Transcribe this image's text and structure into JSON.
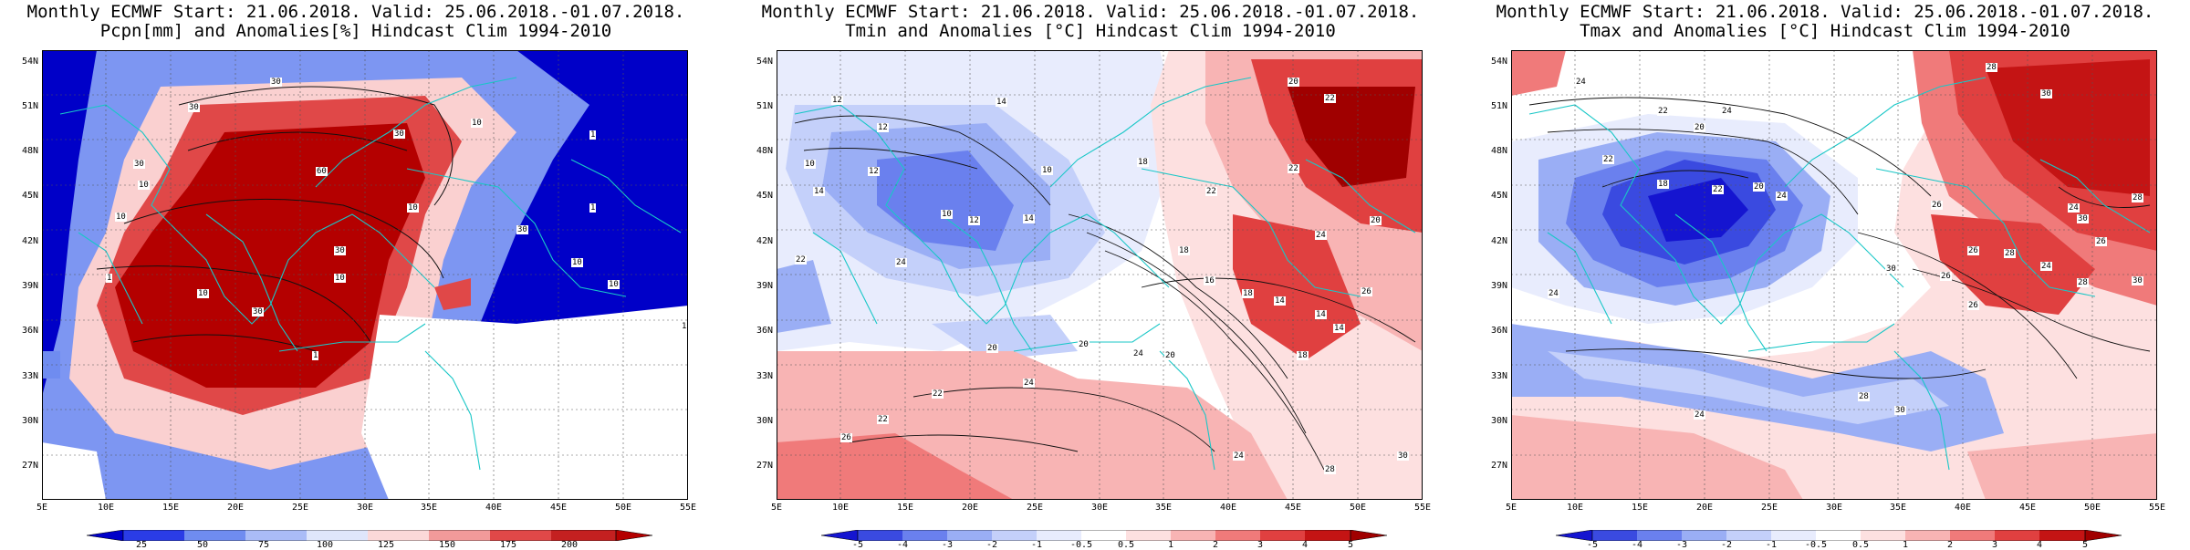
{
  "panels": [
    {
      "id": "precip",
      "title1": "Monthly ECMWF Start: 21.06.2018. Valid: 25.06.2018.-01.07.2018.",
      "title2": "Pcpn[mm] and Anomalies[%] Hindcast Clim 1994-2010",
      "colorbar_labels": [
        "25",
        "50",
        "75",
        "100",
        "125",
        "150",
        "175",
        "200"
      ],
      "colorbar_colors": [
        "#0000c8",
        "#2a3ce6",
        "#6f8cf0",
        "#aabcf7",
        "#dfe6fb",
        "#fbd8d8",
        "#f29a9a",
        "#e04848",
        "#b40000"
      ],
      "contour_labels": [
        "30",
        "30",
        "30",
        "10",
        "1",
        "60",
        "30",
        "10",
        "10",
        "10",
        "1",
        "30",
        "10",
        "1",
        "10",
        "30",
        "1",
        "1",
        "10",
        "30",
        "10"
      ]
    },
    {
      "id": "tmin",
      "title1": "Monthly ECMWF Start: 21.06.2018. Valid: 25.06.2018.-01.07.2018.",
      "title2": "Tmin and Anomalies [°C] Hindcast Clim 1994-2010",
      "colorbar_labels": [
        "-5",
        "-4",
        "-3",
        "-2",
        "-1",
        "-0.5",
        "0.5",
        "1",
        "2",
        "3",
        "4",
        "5"
      ],
      "colorbar_colors": [
        "#1515d0",
        "#3a4ae0",
        "#6a80ee",
        "#9aaef5",
        "#c4d0fa",
        "#e8ecfd",
        "#ffffff",
        "#fde0e0",
        "#f8b4b4",
        "#f07a7a",
        "#e04040",
        "#c41414",
        "#a00000"
      ],
      "contour_labels": [
        "12",
        "12",
        "14",
        "10",
        "10",
        "12",
        "18",
        "20",
        "22",
        "14",
        "10",
        "12",
        "14",
        "18",
        "22",
        "22",
        "20",
        "24",
        "16",
        "18",
        "14",
        "14",
        "14",
        "20",
        "18",
        "22",
        "24",
        "26",
        "20",
        "20",
        "24",
        "22",
        "24",
        "22",
        "26",
        "28",
        "24",
        "30"
      ]
    },
    {
      "id": "tmax",
      "title1": "Monthly ECMWF Start: 21.06.2018. Valid: 25.06.2018.-01.07.2018.",
      "title2": "Tmax and Anomalies [°C] Hindcast Clim 1994-2010",
      "colorbar_labels": [
        "-5",
        "-4",
        "-3",
        "-2",
        "-1",
        "-0.5",
        "0.5",
        "1",
        "2",
        "3",
        "4",
        "5"
      ],
      "colorbar_colors": [
        "#1515d0",
        "#3a4ae0",
        "#6a80ee",
        "#9aaef5",
        "#c4d0fa",
        "#e8ecfd",
        "#ffffff",
        "#fde0e0",
        "#f8b4b4",
        "#f07a7a",
        "#e04040",
        "#c41414",
        "#a00000"
      ],
      "contour_labels": [
        "28",
        "30",
        "24",
        "22",
        "20",
        "24",
        "22",
        "18",
        "22",
        "20",
        "24",
        "26",
        "24",
        "28",
        "30",
        "26",
        "28",
        "24",
        "26",
        "30",
        "26",
        "28",
        "24",
        "26",
        "28",
        "30",
        "24",
        "30"
      ]
    }
  ],
  "lat_ticks": [
    "54N",
    "51N",
    "48N",
    "45N",
    "42N",
    "39N",
    "36N",
    "33N",
    "30N",
    "27N"
  ],
  "lon_ticks": [
    "5E",
    "10E",
    "15E",
    "20E",
    "25E",
    "30E",
    "35E",
    "40E",
    "45E",
    "50E",
    "55E"
  ]
}
